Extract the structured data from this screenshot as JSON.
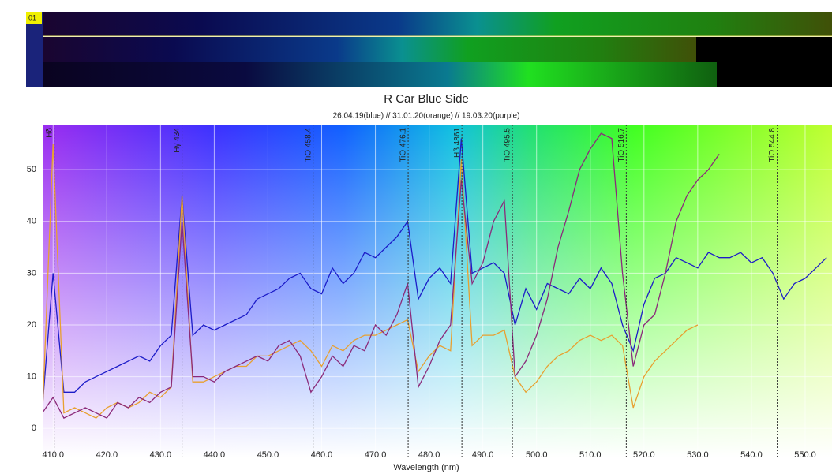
{
  "viewer": {
    "strip_label": "01"
  },
  "chart_data": {
    "type": "line",
    "title": "R Car Blue Side",
    "subtitle": "26.04.19(blue) // 31.01.20(orange) // 19.03.20(purple)",
    "x_label": "Wavelength (nm)",
    "x": [
      408,
      410,
      412,
      414,
      416,
      418,
      420,
      422,
      424,
      426,
      428,
      430,
      432,
      434,
      436,
      438,
      440,
      442,
      444,
      446,
      448,
      450,
      452,
      454,
      456,
      458,
      460,
      462,
      464,
      466,
      468,
      470,
      472,
      474,
      476,
      478,
      480,
      482,
      484,
      486,
      488,
      490,
      492,
      494,
      496,
      498,
      500,
      502,
      504,
      506,
      508,
      510,
      512,
      514,
      516,
      518,
      520,
      522,
      524,
      526,
      528,
      530,
      532,
      534,
      536,
      538,
      540,
      542,
      544,
      546,
      548,
      550,
      552,
      554
    ],
    "series": [
      {
        "name": "26.04.19",
        "color": "#1c1cc8",
        "values": [
          4,
          30,
          7,
          7,
          9,
          10,
          11,
          12,
          13,
          14,
          13,
          16,
          18,
          45,
          18,
          20,
          19,
          20,
          21,
          22,
          25,
          26,
          27,
          29,
          30,
          27,
          26,
          31,
          28,
          30,
          34,
          33,
          35,
          37,
          40,
          25,
          29,
          31,
          28,
          56,
          30,
          31,
          32,
          30,
          20,
          27,
          23,
          28,
          27,
          26,
          29,
          27,
          31,
          28,
          20,
          15,
          24,
          29,
          30,
          33,
          32,
          31,
          34,
          33,
          33,
          34,
          32,
          33,
          30,
          25,
          28,
          29,
          31,
          33
        ]
      },
      {
        "name": "31.01.20",
        "color": "#e8a030",
        "values": [
          2,
          55,
          3,
          4,
          3,
          2,
          4,
          5,
          4,
          5,
          7,
          6,
          8,
          45,
          9,
          9,
          10,
          11,
          12,
          12,
          14,
          14,
          15,
          16,
          17,
          15,
          12,
          16,
          15,
          17,
          18,
          18,
          19,
          20,
          21,
          11,
          14,
          16,
          15,
          52,
          16,
          18,
          18,
          19,
          10,
          7,
          9,
          12,
          14,
          15,
          17,
          18,
          17,
          18,
          16,
          4,
          10,
          13,
          15,
          17,
          19,
          20,
          null,
          null,
          null,
          null,
          null,
          null,
          null,
          null,
          null,
          null,
          null,
          null
        ]
      },
      {
        "name": "19.03.20",
        "color": "#8b2a7a",
        "values": [
          3,
          6,
          2,
          3,
          4,
          3,
          2,
          5,
          4,
          6,
          5,
          7,
          8,
          40,
          10,
          10,
          9,
          11,
          12,
          13,
          14,
          13,
          16,
          17,
          14,
          7,
          10,
          14,
          12,
          16,
          15,
          20,
          18,
          22,
          28,
          8,
          12,
          17,
          20,
          48,
          28,
          32,
          40,
          44,
          10,
          13,
          18,
          25,
          35,
          42,
          50,
          54,
          57,
          56,
          30,
          12,
          20,
          22,
          30,
          40,
          45,
          48,
          50,
          53,
          null,
          null,
          null,
          null,
          null,
          null,
          null,
          null,
          null,
          null
        ]
      }
    ],
    "annotations": [
      {
        "label": "Hδ",
        "x": 410.2
      },
      {
        "label": "Hγ 434",
        "x": 434.0
      },
      {
        "label": "TiO 458.4",
        "x": 458.4
      },
      {
        "label": "TiO 476.1",
        "x": 476.1
      },
      {
        "label": "Hβ 4861",
        "x": 486.1
      },
      {
        "label": "TiO 495.5",
        "x": 495.5
      },
      {
        "label": "TiO 516.7",
        "x": 516.7
      },
      {
        "label": "TiO 544.8",
        "x": 544.8
      }
    ],
    "xlim": [
      408.2,
      555
    ],
    "ylim": [
      -5.6,
      58.7
    ],
    "xticks": [
      {
        "value": 410,
        "label": "410.0"
      },
      {
        "value": 420,
        "label": "420.0"
      },
      {
        "value": 430,
        "label": "430.0"
      },
      {
        "value": 440,
        "label": "440.0"
      },
      {
        "value": 450,
        "label": "450.0"
      },
      {
        "value": 460,
        "label": "460.0"
      },
      {
        "value": 470,
        "label": "470.0"
      },
      {
        "value": 480,
        "label": "480.0"
      },
      {
        "value": 490,
        "label": "490.0"
      },
      {
        "value": 500,
        "label": "500.0"
      },
      {
        "value": 510,
        "label": "510.0"
      },
      {
        "value": 520,
        "label": "520.0"
      },
      {
        "value": 530,
        "label": "530.0"
      },
      {
        "value": 540,
        "label": "540.0"
      },
      {
        "value": 550,
        "label": "550.0"
      }
    ],
    "yticks": [
      0,
      10,
      20,
      30,
      40,
      50
    ],
    "grid": true
  }
}
